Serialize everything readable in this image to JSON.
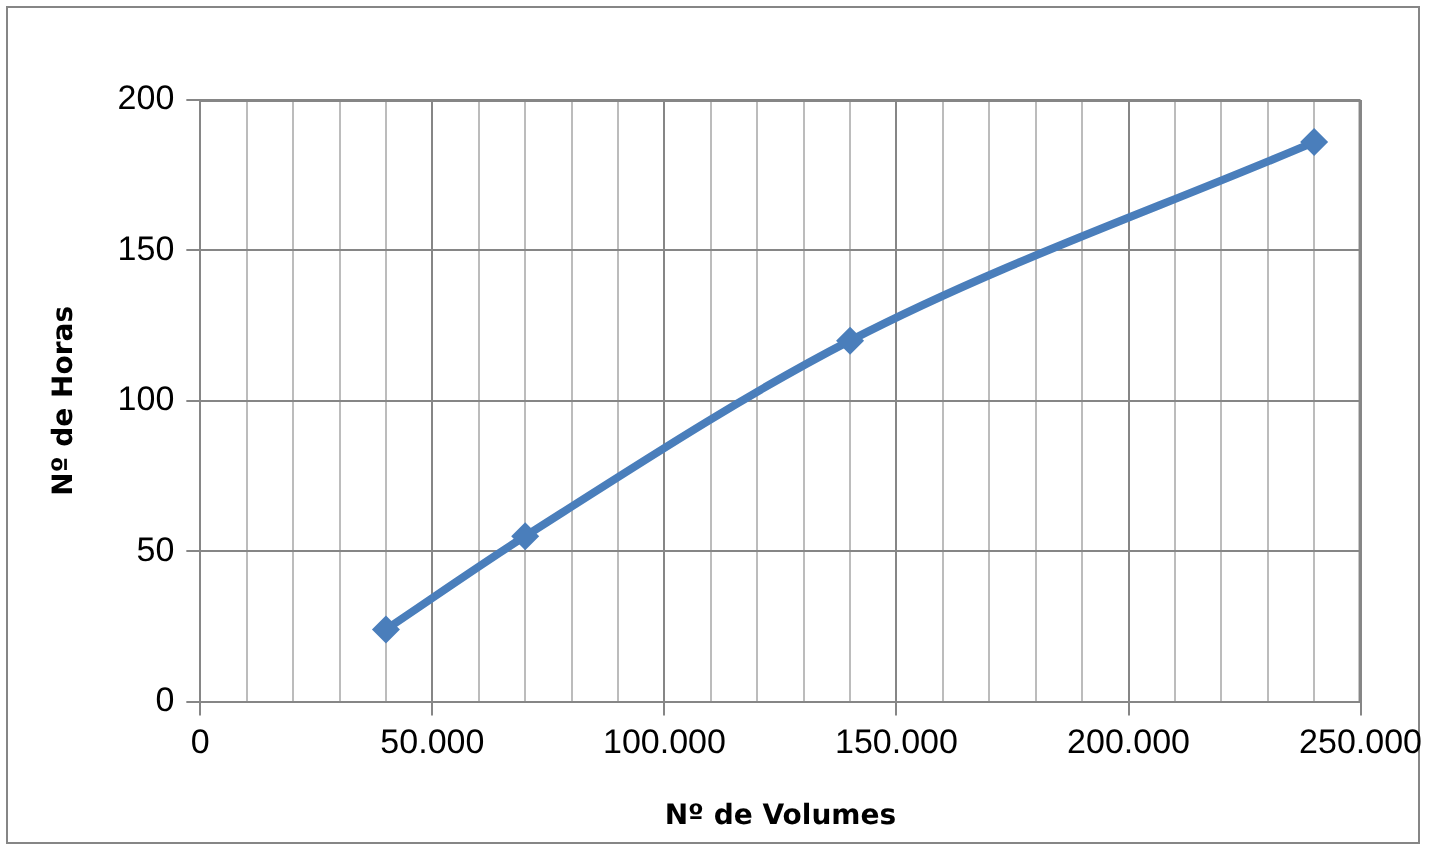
{
  "chart_data": {
    "type": "line",
    "xlabel": "Nº de Volumes",
    "ylabel": "Nº de Horas",
    "x": [
      40000,
      70000,
      140000,
      240000
    ],
    "series": [
      {
        "color": "#4a7ebb",
        "values": [
          24,
          55,
          120,
          186
        ]
      }
    ],
    "xlim": [
      0,
      250000
    ],
    "xticks": [
      {
        "value": 0,
        "label": "0"
      },
      {
        "value": 10000,
        "label": null
      },
      {
        "value": 20000,
        "label": null
      },
      {
        "value": 30000,
        "label": null
      },
      {
        "value": 40000,
        "label": null
      },
      {
        "value": 50000,
        "label": "50.000"
      },
      {
        "value": 60000,
        "label": null
      },
      {
        "value": 70000,
        "label": null
      },
      {
        "value": 80000,
        "label": null
      },
      {
        "value": 90000,
        "label": null
      },
      {
        "value": 100000,
        "label": "100.000"
      },
      {
        "value": 110000,
        "label": null
      },
      {
        "value": 120000,
        "label": null
      },
      {
        "value": 130000,
        "label": null
      },
      {
        "value": 140000,
        "label": null
      },
      {
        "value": 150000,
        "label": "150.000"
      },
      {
        "value": 160000,
        "label": null
      },
      {
        "value": 170000,
        "label": null
      },
      {
        "value": 180000,
        "label": null
      },
      {
        "value": 190000,
        "label": null
      },
      {
        "value": 200000,
        "label": "200.000"
      },
      {
        "value": 210000,
        "label": null
      },
      {
        "value": 220000,
        "label": null
      },
      {
        "value": 230000,
        "label": null
      },
      {
        "value": 240000,
        "label": null
      },
      {
        "value": 250000,
        "label": "250.000"
      }
    ],
    "ylim": [
      0,
      200
    ],
    "yticks": [
      0,
      50,
      100,
      150,
      200
    ],
    "grid": true,
    "legend": false,
    "marker": "diamond",
    "line_style": "solid"
  }
}
